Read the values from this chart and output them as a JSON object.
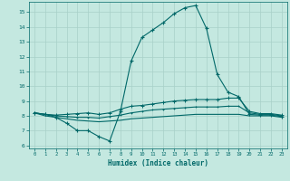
{
  "xlabel": "Humidex (Indice chaleur)",
  "background_color": "#c4e8e0",
  "grid_color": "#a8d0c8",
  "line_color": "#006868",
  "xlim": [
    -0.5,
    23.5
  ],
  "ylim": [
    5.8,
    15.7
  ],
  "yticks": [
    6,
    7,
    8,
    9,
    10,
    11,
    12,
    13,
    14,
    15
  ],
  "xticks": [
    0,
    1,
    2,
    3,
    4,
    5,
    6,
    7,
    8,
    9,
    10,
    11,
    12,
    13,
    14,
    15,
    16,
    17,
    18,
    19,
    20,
    21,
    22,
    23
  ],
  "series": {
    "main": [
      8.2,
      8.1,
      7.9,
      7.5,
      7.0,
      7.0,
      6.6,
      6.3,
      8.3,
      11.7,
      13.3,
      13.8,
      14.3,
      14.9,
      15.3,
      15.45,
      13.9,
      10.8,
      9.6,
      9.3,
      8.1,
      8.05,
      8.05,
      7.95
    ],
    "upper": [
      8.2,
      8.1,
      8.05,
      8.1,
      8.15,
      8.2,
      8.1,
      8.2,
      8.45,
      8.65,
      8.7,
      8.8,
      8.9,
      9.0,
      9.05,
      9.1,
      9.1,
      9.1,
      9.2,
      9.2,
      8.3,
      8.15,
      8.15,
      8.05
    ],
    "mid": [
      8.2,
      8.1,
      8.0,
      7.95,
      7.9,
      7.9,
      7.85,
      7.95,
      8.05,
      8.2,
      8.3,
      8.4,
      8.45,
      8.5,
      8.55,
      8.6,
      8.6,
      8.6,
      8.65,
      8.65,
      8.2,
      8.1,
      8.1,
      8.0
    ],
    "lower": [
      8.2,
      8.0,
      7.9,
      7.8,
      7.7,
      7.65,
      7.6,
      7.65,
      7.7,
      7.8,
      7.85,
      7.9,
      7.95,
      8.0,
      8.05,
      8.1,
      8.1,
      8.1,
      8.1,
      8.1,
      8.0,
      8.0,
      8.0,
      7.9
    ]
  }
}
